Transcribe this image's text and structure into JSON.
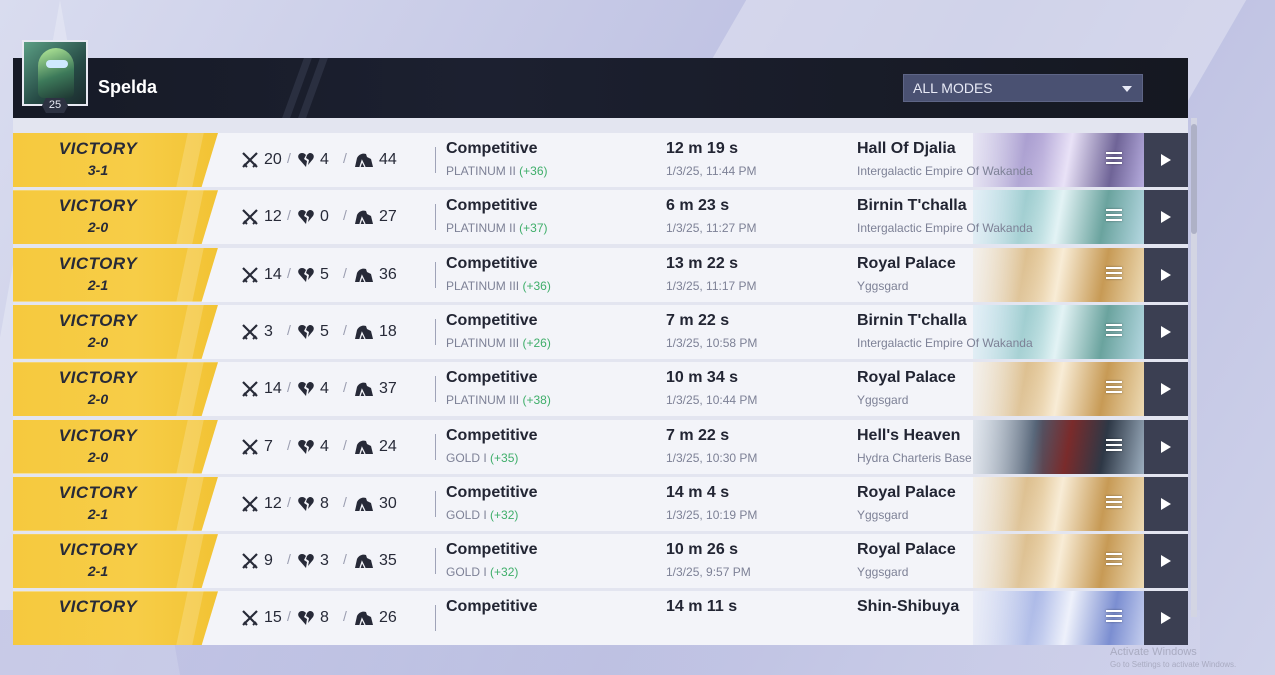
{
  "player": {
    "name": "Spelda",
    "level": "25"
  },
  "filter": {
    "selected": "ALL MODES"
  },
  "matches": [
    {
      "result": "VICTORY",
      "score": "3-1",
      "kills": "20",
      "deaths": "4",
      "assists": "44",
      "mode": "Competitive",
      "rank": "PLATINUM II",
      "rank_delta": "(+36)",
      "duration": "12 m 19 s",
      "datetime": "1/3/25, 11:44 PM",
      "map": "Hall Of Djalia",
      "region": "Intergalactic Empire Of Wakanda"
    },
    {
      "result": "VICTORY",
      "score": "2-0",
      "kills": "12",
      "deaths": "0",
      "assists": "27",
      "mode": "Competitive",
      "rank": "PLATINUM II",
      "rank_delta": "(+37)",
      "duration": "6 m 23 s",
      "datetime": "1/3/25, 11:27 PM",
      "map": "Birnin T'challa",
      "region": "Intergalactic Empire Of Wakanda"
    },
    {
      "result": "VICTORY",
      "score": "2-1",
      "kills": "14",
      "deaths": "5",
      "assists": "36",
      "mode": "Competitive",
      "rank": "PLATINUM III",
      "rank_delta": "(+36)",
      "duration": "13 m 22 s",
      "datetime": "1/3/25, 11:17 PM",
      "map": "Royal Palace",
      "region": "Yggsgard"
    },
    {
      "result": "VICTORY",
      "score": "2-0",
      "kills": "3",
      "deaths": "5",
      "assists": "18",
      "mode": "Competitive",
      "rank": "PLATINUM III",
      "rank_delta": "(+26)",
      "duration": "7 m 22 s",
      "datetime": "1/3/25, 10:58 PM",
      "map": "Birnin T'challa",
      "region": "Intergalactic Empire Of Wakanda"
    },
    {
      "result": "VICTORY",
      "score": "2-0",
      "kills": "14",
      "deaths": "4",
      "assists": "37",
      "mode": "Competitive",
      "rank": "PLATINUM III",
      "rank_delta": "(+38)",
      "duration": "10 m 34 s",
      "datetime": "1/3/25, 10:44 PM",
      "map": "Royal Palace",
      "region": "Yggsgard"
    },
    {
      "result": "VICTORY",
      "score": "2-0",
      "kills": "7",
      "deaths": "4",
      "assists": "24",
      "mode": "Competitive",
      "rank": "GOLD I",
      "rank_delta": "(+35)",
      "duration": "7 m 22 s",
      "datetime": "1/3/25, 10:30 PM",
      "map": "Hell's Heaven",
      "region": "Hydra Charteris Base"
    },
    {
      "result": "VICTORY",
      "score": "2-1",
      "kills": "12",
      "deaths": "8",
      "assists": "30",
      "mode": "Competitive",
      "rank": "GOLD I",
      "rank_delta": "(+32)",
      "duration": "14 m 4 s",
      "datetime": "1/3/25, 10:19 PM",
      "map": "Royal Palace",
      "region": "Yggsgard"
    },
    {
      "result": "VICTORY",
      "score": "2-1",
      "kills": "9",
      "deaths": "3",
      "assists": "35",
      "mode": "Competitive",
      "rank": "GOLD I",
      "rank_delta": "(+32)",
      "duration": "10 m 26 s",
      "datetime": "1/3/25, 9:57 PM",
      "map": "Royal Palace",
      "region": "Yggsgard"
    },
    {
      "result": "VICTORY",
      "score": "",
      "kills": "15",
      "deaths": "8",
      "assists": "26",
      "mode": "Competitive",
      "rank": "",
      "rank_delta": "",
      "duration": "14 m 11 s",
      "datetime": "",
      "map": "Shin-Shibuya",
      "region": ""
    }
  ],
  "icons": {
    "kills": "crossed-swords-icon",
    "deaths": "broken-heart-icon",
    "assists": "helmet-icon",
    "details": "menu-icon",
    "replay": "play-icon",
    "dropdown": "caret-down-icon"
  },
  "colors": {
    "victory": "#f6c93e",
    "rank_delta": "#3fae6a",
    "header": "#161a26",
    "play_button": "#3b3f52"
  },
  "watermark": {
    "title": "Activate Windows",
    "subtitle": "Go to Settings to activate Windows."
  }
}
